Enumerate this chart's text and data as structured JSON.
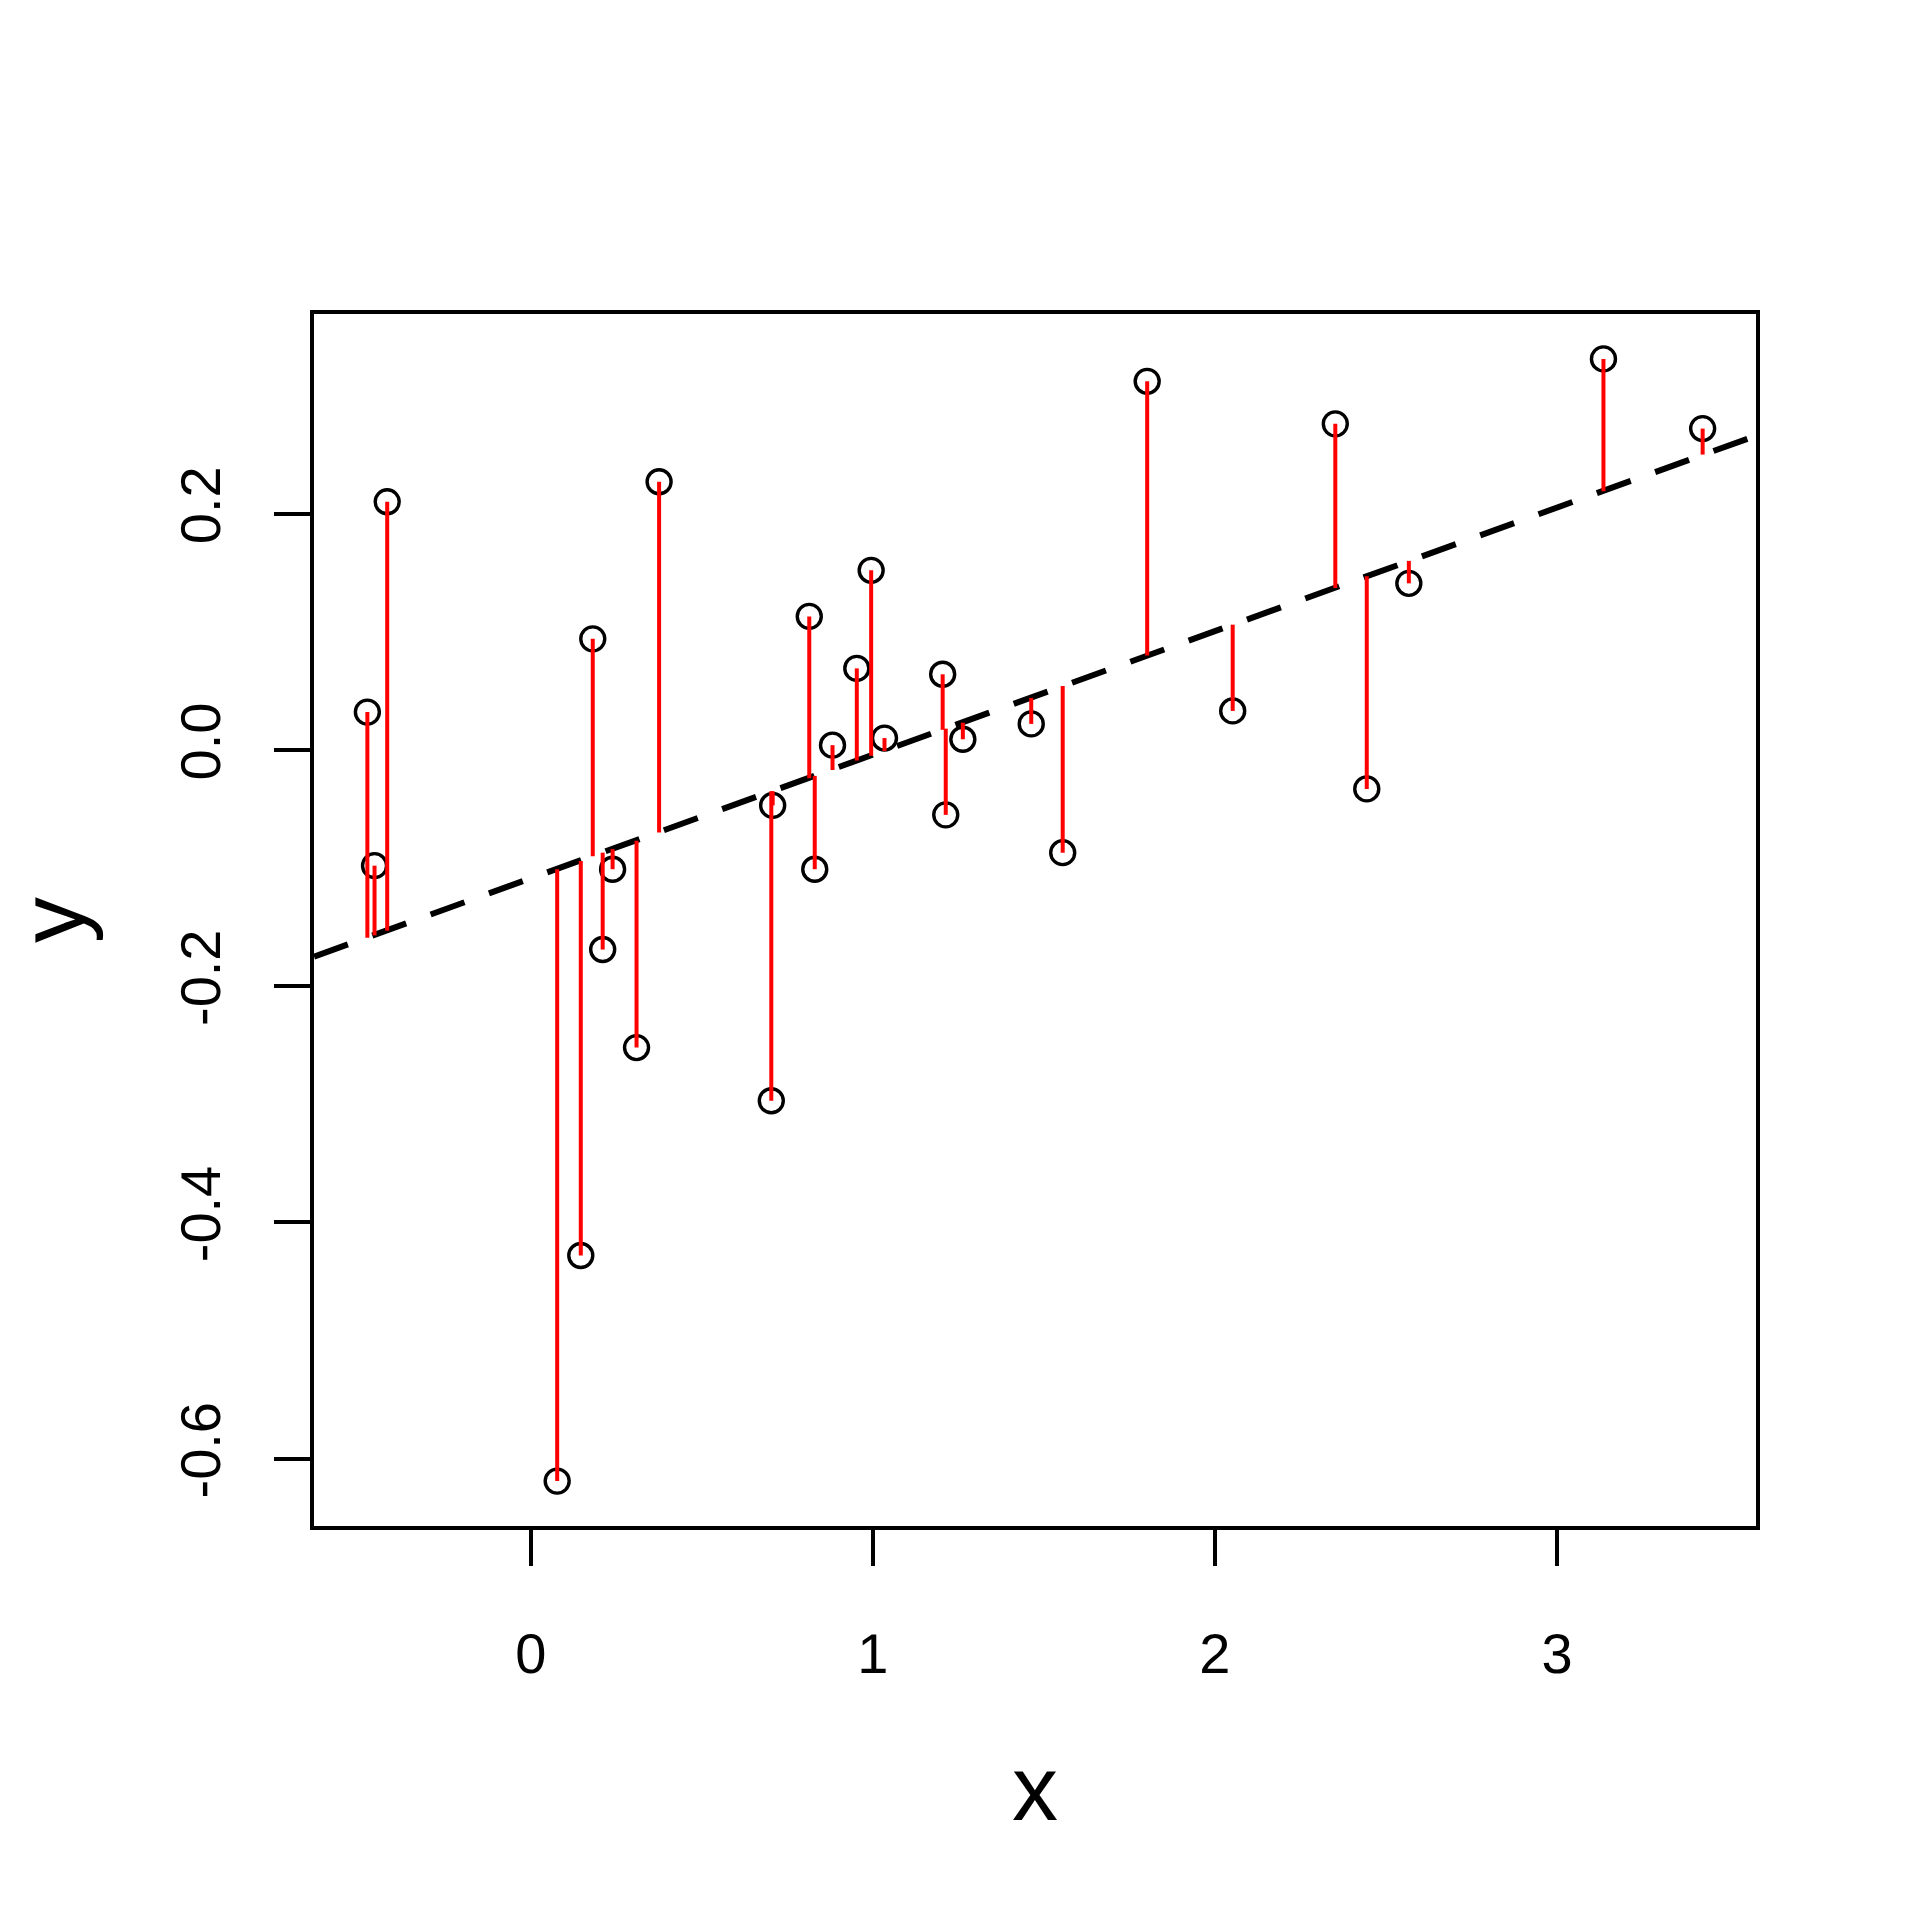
{
  "chart_data": {
    "type": "scatter",
    "xlabel": "x",
    "ylabel": "y",
    "xlim": [
      -0.634,
      3.582
    ],
    "ylim": [
      -0.657,
      0.369
    ],
    "xticks": [
      0,
      1,
      2,
      3
    ],
    "yticks": [
      -0.6,
      -0.4,
      -0.2,
      {
        "value": 0,
        "label": "0.0"
      },
      0.2
    ],
    "series": [
      {
        "color": "#000000",
        "marker": "circle",
        "x": [
          -0.478,
          -0.457,
          -0.42,
          0.077,
          0.146,
          0.181,
          0.21,
          0.239,
          0.309,
          0.375,
          0.703,
          0.707,
          0.814,
          0.83,
          0.882,
          0.953,
          0.995,
          1.034,
          1.204,
          1.213,
          1.263,
          1.463,
          1.555,
          1.802,
          2.052,
          2.352,
          2.444,
          2.567,
          3.136,
          3.426
        ],
        "values": [
          0.032,
          -0.098,
          0.21,
          -0.619,
          -0.428,
          0.094,
          -0.169,
          -0.101,
          -0.252,
          0.227,
          -0.297,
          -0.047,
          0.113,
          -0.101,
          0.004,
          0.069,
          0.152,
          0.01,
          0.064,
          -0.055,
          0.009,
          0.022,
          -0.087,
          0.312,
          0.033,
          0.276,
          -0.033,
          0.141,
          0.331,
          0.272
        ]
      },
      {
        "type": "line",
        "color": "#000000",
        "line_style": "dashed",
        "x": [
          -0.634,
          3.582
        ],
        "values": [
          -0.175,
          0.266
        ]
      },
      {
        "type": "line",
        "color": "#ff0000",
        "line_style": "solid",
        "x": [
          -0.478,
          -0.478,
          null,
          -0.457,
          -0.457,
          null,
          -0.42,
          -0.42,
          null,
          0.077,
          0.077,
          null,
          0.146,
          0.146,
          null,
          0.181,
          0.181,
          null,
          0.21,
          0.21,
          null,
          0.239,
          0.239,
          null,
          0.309,
          0.309,
          null,
          0.375,
          0.375,
          null,
          0.703,
          0.703,
          null,
          0.707,
          0.707,
          null,
          0.814,
          0.814,
          null,
          0.83,
          0.83,
          null,
          0.882,
          0.882,
          null,
          0.953,
          0.953,
          null,
          0.995,
          0.995,
          null,
          1.034,
          1.034,
          null,
          1.204,
          1.204,
          null,
          1.213,
          1.213,
          null,
          1.263,
          1.263,
          null,
          1.463,
          1.463,
          null,
          1.555,
          1.555,
          null,
          1.802,
          1.802,
          null,
          2.052,
          2.052,
          null,
          2.352,
          2.352,
          null,
          2.444,
          2.444,
          null,
          2.567,
          2.567,
          null,
          3.136,
          3.136,
          null,
          3.426,
          3.426
        ],
        "values": [
          0.032,
          -0.159,
          null,
          -0.098,
          -0.157,
          null,
          0.21,
          -0.153,
          null,
          -0.619,
          -0.101,
          null,
          -0.428,
          -0.094,
          null,
          0.094,
          -0.09,
          null,
          -0.169,
          -0.087,
          null,
          -0.101,
          -0.084,
          null,
          -0.252,
          -0.077,
          null,
          0.227,
          -0.07,
          null,
          -0.297,
          -0.035,
          null,
          -0.047,
          -0.035,
          null,
          0.113,
          -0.024,
          null,
          -0.101,
          -0.022,
          null,
          0.004,
          -0.017,
          null,
          0.069,
          -0.009,
          null,
          0.152,
          -0.005,
          null,
          0.01,
          -0.001,
          null,
          0.064,
          0.017,
          null,
          -0.055,
          0.018,
          null,
          0.009,
          0.023,
          null,
          0.022,
          0.044,
          null,
          -0.087,
          0.054,
          null,
          0.312,
          0.08,
          null,
          0.033,
          0.106,
          null,
          0.276,
          0.137,
          null,
          -0.033,
          0.147,
          null,
          0.141,
          0.16,
          null,
          0.331,
          0.219,
          null,
          0.272,
          0.25
        ]
      }
    ]
  }
}
